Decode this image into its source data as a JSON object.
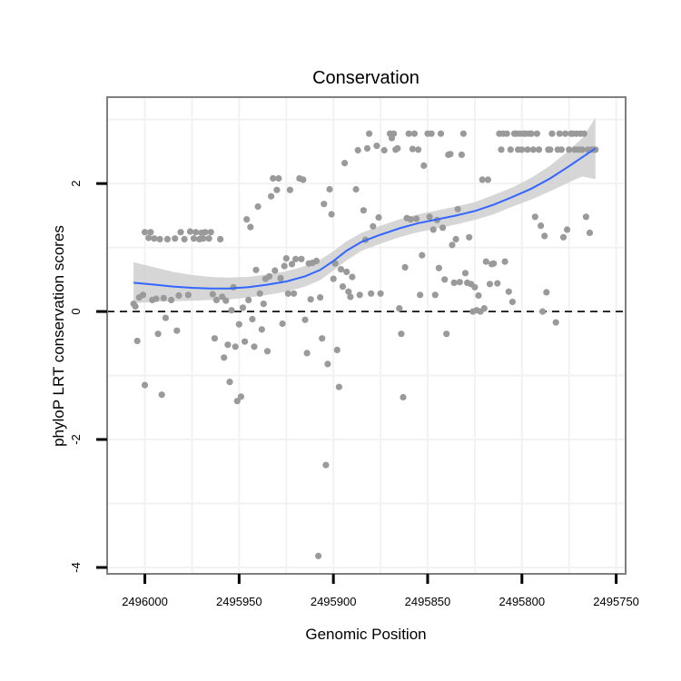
{
  "chart_data": {
    "type": "scatter",
    "title": "Conservation",
    "xlabel": "Genomic Position",
    "ylabel": "phyloP LRT conservation scores",
    "x_reversed": true,
    "xlim": [
      2496020,
      2495745
    ],
    "ylim": [
      -4.1,
      3.35
    ],
    "x_ticks": [
      2496000,
      2495950,
      2495900,
      2495850,
      2495800,
      2495750
    ],
    "x_tick_labels": [
      "2496000",
      "2495950",
      "2495900",
      "2495850",
      "2495800",
      "2495750"
    ],
    "y_ticks": [
      -4,
      -2,
      0,
      2
    ],
    "y_tick_labels": [
      "-4",
      "-2",
      "0",
      "2"
    ],
    "reference_line": {
      "y": 0,
      "style": "dashed"
    },
    "colors": {
      "points": "#9a9a9a",
      "smooth": "#3366ff",
      "ribbon": "#cfcfcf",
      "grid": "#f2f2f2",
      "border": "#7f7f7f"
    },
    "points": [
      [
        2496006,
        0.12
      ],
      [
        2496005,
        0.08
      ],
      [
        2496004,
        -0.46
      ],
      [
        2496003,
        0.22
      ],
      [
        2496001,
        0.26
      ],
      [
        2496000,
        1.24
      ],
      [
        2496000,
        -1.15
      ],
      [
        2495998,
        1.15
      ],
      [
        2495997,
        1.24
      ],
      [
        2495996,
        0.18
      ],
      [
        2495995,
        1.14
      ],
      [
        2495994,
        0.2
      ],
      [
        2495993,
        -0.35
      ],
      [
        2495992,
        1.13
      ],
      [
        2495991,
        -1.3
      ],
      [
        2495990,
        0.21
      ],
      [
        2495989,
        -0.1
      ],
      [
        2495988,
        1.13
      ],
      [
        2495986,
        0.18
      ],
      [
        2495984,
        1.14
      ],
      [
        2495983,
        -0.3
      ],
      [
        2495982,
        0.25
      ],
      [
        2495981,
        1.24
      ],
      [
        2495979,
        1.13
      ],
      [
        2495977,
        0.26
      ],
      [
        2495976,
        1.25
      ],
      [
        2495974,
        1.14
      ],
      [
        2495973,
        1.24
      ],
      [
        2495971,
        1.13
      ],
      [
        2495970,
        1.23
      ],
      [
        2495969,
        1.14
      ],
      [
        2495968,
        1.24
      ],
      [
        2495966,
        1.14
      ],
      [
        2495965,
        1.24
      ],
      [
        2495964,
        0.27
      ],
      [
        2495963,
        -0.42
      ],
      [
        2495962,
        0.18
      ],
      [
        2495960,
        1.13
      ],
      [
        2495959,
        0.23
      ],
      [
        2495958,
        -0.72
      ],
      [
        2495957,
        0.17
      ],
      [
        2495956,
        -0.52
      ],
      [
        2495955,
        -1.1
      ],
      [
        2495954,
        0.02
      ],
      [
        2495953,
        0.38
      ],
      [
        2495952,
        -0.55
      ],
      [
        2495951,
        -1.4
      ],
      [
        2495950,
        -0.2
      ],
      [
        2495949,
        -1.33
      ],
      [
        2495948,
        0.06
      ],
      [
        2495947,
        -0.47
      ],
      [
        2495946,
        1.44
      ],
      [
        2495945,
        0.18
      ],
      [
        2495944,
        1.32
      ],
      [
        2495943,
        -0.12
      ],
      [
        2495942,
        -0.55
      ],
      [
        2495941,
        0.65
      ],
      [
        2495940,
        1.64
      ],
      [
        2495939,
        0.28
      ],
      [
        2495938,
        -0.28
      ],
      [
        2495937,
        0.12
      ],
      [
        2495936,
        0.51
      ],
      [
        2495935,
        -0.62
      ],
      [
        2495934,
        0.55
      ],
      [
        2495933,
        1.8
      ],
      [
        2495932,
        2.08
      ],
      [
        2495931,
        0.64
      ],
      [
        2495930,
        1.9
      ],
      [
        2495929,
        2.08
      ],
      [
        2495928,
        0.52
      ],
      [
        2495927,
        -0.19
      ],
      [
        2495926,
        0.71
      ],
      [
        2495925,
        0.83
      ],
      [
        2495924,
        0.28
      ],
      [
        2495923,
        1.9
      ],
      [
        2495922,
        0.74
      ],
      [
        2495921,
        0.28
      ],
      [
        2495920,
        0.82
      ],
      [
        2495918,
        2.08
      ],
      [
        2495917,
        0.82
      ],
      [
        2495916,
        2.06
      ],
      [
        2495915,
        -0.13
      ],
      [
        2495914,
        -0.65
      ],
      [
        2495913,
        0.75
      ],
      [
        2495912,
        0.19
      ],
      [
        2495911,
        0.76
      ],
      [
        2495909,
        0.79
      ],
      [
        2495908,
        -3.82
      ],
      [
        2495907,
        0.22
      ],
      [
        2495906,
        -0.42
      ],
      [
        2495905,
        1.68
      ],
      [
        2495904,
        -2.4
      ],
      [
        2495903,
        -0.82
      ],
      [
        2495902,
        1.91
      ],
      [
        2495901,
        1.52
      ],
      [
        2495900,
        0.51
      ],
      [
        2495899,
        0.75
      ],
      [
        2495898,
        -0.6
      ],
      [
        2495897,
        -1.18
      ],
      [
        2495896,
        0.66
      ],
      [
        2495895,
        0.39
      ],
      [
        2495894,
        2.32
      ],
      [
        2495893,
        0.62
      ],
      [
        2495892,
        0.31
      ],
      [
        2495891,
        0.23
      ],
      [
        2495890,
        0.54
      ],
      [
        2495888,
        1.91
      ],
      [
        2495887,
        2.52
      ],
      [
        2495886,
        0.26
      ],
      [
        2495884,
        1.58
      ],
      [
        2495883,
        1.12
      ],
      [
        2495882,
        2.55
      ],
      [
        2495881,
        2.78
      ],
      [
        2495880,
        0.28
      ],
      [
        2495879,
        1.33
      ],
      [
        2495877,
        2.59
      ],
      [
        2495876,
        1.47
      ],
      [
        2495875,
        0.28
      ],
      [
        2495873,
        2.52
      ],
      [
        2495870,
        2.78
      ],
      [
        2495869,
        2.71
      ],
      [
        2495868,
        2.78
      ],
      [
        2495867,
        2.53
      ],
      [
        2495866,
        2.55
      ],
      [
        2495865,
        0.05
      ],
      [
        2495864,
        -0.35
      ],
      [
        2495863,
        -1.34
      ],
      [
        2495862,
        0.69
      ],
      [
        2495861,
        1.46
      ],
      [
        2495860,
        2.78
      ],
      [
        2495859,
        1.44
      ],
      [
        2495858,
        2.54
      ],
      [
        2495857,
        2.78
      ],
      [
        2495856,
        1.45
      ],
      [
        2495855,
        2.53
      ],
      [
        2495854,
        0.26
      ],
      [
        2495853,
        0.88
      ],
      [
        2495852,
        2.28
      ],
      [
        2495850,
        2.78
      ],
      [
        2495849,
        1.48
      ],
      [
        2495848,
        2.78
      ],
      [
        2495847,
        1.28
      ],
      [
        2495846,
        0.26
      ],
      [
        2495845,
        1.43
      ],
      [
        2495844,
        0.68
      ],
      [
        2495843,
        2.78
      ],
      [
        2495842,
        1.31
      ],
      [
        2495841,
        0.5
      ],
      [
        2495840,
        -0.35
      ],
      [
        2495839,
        2.45
      ],
      [
        2495838,
        2.46
      ],
      [
        2495837,
        1.04
      ],
      [
        2495836,
        0.45
      ],
      [
        2495835,
        1.13
      ],
      [
        2495834,
        1.6
      ],
      [
        2495833,
        0.46
      ],
      [
        2495832,
        2.45
      ],
      [
        2495831,
        2.78
      ],
      [
        2495830,
        0.6
      ],
      [
        2495829,
        0.45
      ],
      [
        2495828,
        1.16
      ],
      [
        2495827,
        0.43
      ],
      [
        2495826,
        0.0
      ],
      [
        2495825,
        0.38
      ],
      [
        2495824,
        0.02
      ],
      [
        2495823,
        0.25
      ],
      [
        2495822,
        0.0
      ],
      [
        2495821,
        2.06
      ],
      [
        2495820,
        0.05
      ],
      [
        2495819,
        0.78
      ],
      [
        2495818,
        2.06
      ],
      [
        2495817,
        0.43
      ],
      [
        2495816,
        0.74
      ],
      [
        2495815,
        0.75
      ],
      [
        2495813,
        0.44
      ],
      [
        2495812,
        2.78
      ],
      [
        2495811,
        2.53
      ],
      [
        2495810,
        2.78
      ],
      [
        2495809,
        0.78
      ],
      [
        2495808,
        2.78
      ],
      [
        2495807,
        0.31
      ],
      [
        2495806,
        2.53
      ],
      [
        2495805,
        0.15
      ],
      [
        2495804,
        2.78
      ],
      [
        2495803,
        2.78
      ],
      [
        2495802,
        2.53
      ],
      [
        2495801,
        2.78
      ],
      [
        2495800,
        2.53
      ],
      [
        2495799,
        2.78
      ],
      [
        2495798,
        2.78
      ],
      [
        2495797,
        2.53
      ],
      [
        2495796,
        2.78
      ],
      [
        2495795,
        2.78
      ],
      [
        2495794,
        2.53
      ],
      [
        2495793,
        1.48
      ],
      [
        2495792,
        2.78
      ],
      [
        2495791,
        2.53
      ],
      [
        2495790,
        1.34
      ],
      [
        2495789,
        0.0
      ],
      [
        2495788,
        1.18
      ],
      [
        2495787,
        0.3
      ],
      [
        2495786,
        2.53
      ],
      [
        2495785,
        2.53
      ],
      [
        2495784,
        2.78
      ],
      [
        2495782,
        -0.17
      ],
      [
        2495781,
        2.53
      ],
      [
        2495780,
        2.78
      ],
      [
        2495779,
        2.53
      ],
      [
        2495778,
        1.16
      ],
      [
        2495777,
        2.78
      ],
      [
        2495776,
        1.28
      ],
      [
        2495775,
        2.53
      ],
      [
        2495774,
        2.78
      ],
      [
        2495773,
        2.78
      ],
      [
        2495772,
        2.53
      ],
      [
        2495771,
        2.78
      ],
      [
        2495770,
        2.53
      ],
      [
        2495769,
        2.78
      ],
      [
        2495768,
        2.53
      ],
      [
        2495767,
        2.78
      ],
      [
        2495766,
        1.48
      ],
      [
        2495765,
        2.53
      ],
      [
        2495764,
        1.23
      ],
      [
        2495763,
        2.53
      ],
      [
        2495762,
        2.53
      ],
      [
        2495761,
        2.53
      ]
    ],
    "smooth_line": [
      [
        2496006,
        0.45
      ],
      [
        2495995,
        0.42
      ],
      [
        2495985,
        0.39
      ],
      [
        2495975,
        0.37
      ],
      [
        2495965,
        0.36
      ],
      [
        2495955,
        0.36
      ],
      [
        2495945,
        0.38
      ],
      [
        2495935,
        0.42
      ],
      [
        2495925,
        0.47
      ],
      [
        2495915,
        0.55
      ],
      [
        2495907,
        0.65
      ],
      [
        2495900,
        0.79
      ],
      [
        2495893,
        0.95
      ],
      [
        2495885,
        1.09
      ],
      [
        2495875,
        1.2
      ],
      [
        2495865,
        1.3
      ],
      [
        2495855,
        1.38
      ],
      [
        2495845,
        1.44
      ],
      [
        2495835,
        1.5
      ],
      [
        2495825,
        1.57
      ],
      [
        2495815,
        1.67
      ],
      [
        2495805,
        1.79
      ],
      [
        2495795,
        1.92
      ],
      [
        2495785,
        2.08
      ],
      [
        2495775,
        2.27
      ],
      [
        2495768,
        2.41
      ],
      [
        2495761,
        2.55
      ]
    ],
    "ribbon_half_width": [
      0.32,
      0.27,
      0.23,
      0.2,
      0.18,
      0.17,
      0.16,
      0.16,
      0.16,
      0.16,
      0.16,
      0.15,
      0.15,
      0.14,
      0.14,
      0.14,
      0.14,
      0.14,
      0.14,
      0.14,
      0.15,
      0.15,
      0.17,
      0.2,
      0.25,
      0.3,
      0.48
    ]
  }
}
